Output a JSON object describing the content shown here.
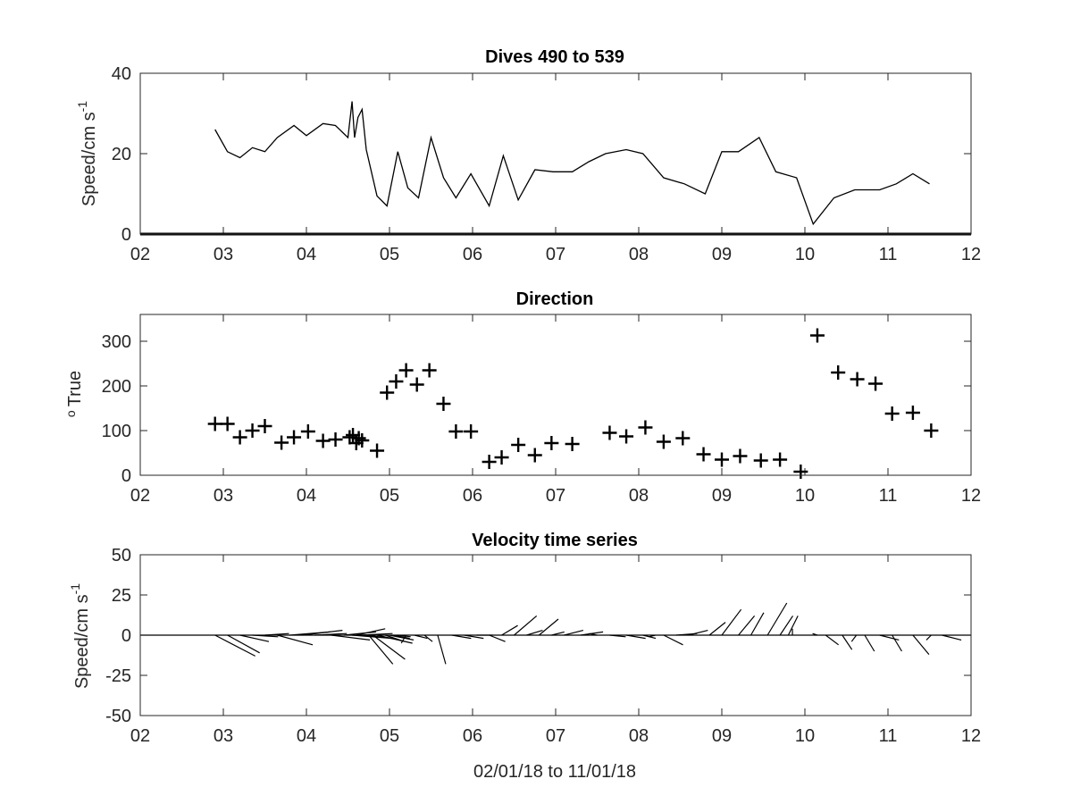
{
  "chart_data": [
    {
      "type": "line",
      "title": "Dives 490 to 539",
      "ylabel": "Speed/cm s",
      "ylabel_sup": "-1",
      "xlim": [
        2,
        12
      ],
      "ylim": [
        0,
        40
      ],
      "xtick_labels": [
        "02",
        "03",
        "04",
        "05",
        "06",
        "07",
        "08",
        "09",
        "10",
        "11",
        "12"
      ],
      "ytick_values": [
        0,
        20,
        40
      ],
      "ytick_labels": [
        "0",
        "20",
        "40"
      ],
      "series": [
        {
          "x": [
            2.9,
            3.05,
            3.2,
            3.35,
            3.5,
            3.65,
            3.85,
            4.0,
            4.2,
            4.35,
            4.5,
            4.55,
            4.58,
            4.62,
            4.67,
            4.72,
            4.85,
            4.97,
            5.1,
            5.22,
            5.35,
            5.5,
            5.65,
            5.8,
            5.98,
            6.2,
            6.37,
            6.55,
            6.75,
            6.97,
            7.2,
            7.4,
            7.6,
            7.85,
            8.05,
            8.3,
            8.55,
            8.8,
            9.0,
            9.2,
            9.45,
            9.65,
            9.9,
            10.1,
            10.35,
            10.6,
            10.8,
            10.9,
            11.1,
            11.3,
            11.5
          ],
          "y": [
            26,
            20.5,
            19,
            21.5,
            20.5,
            24,
            27,
            24.5,
            27.5,
            27,
            24,
            33,
            24,
            29,
            31,
            21,
            9.5,
            7,
            20.5,
            11.5,
            9,
            24,
            14,
            9,
            15,
            7,
            19.5,
            8.5,
            16,
            15.5,
            15.5,
            18,
            20,
            21,
            20,
            14,
            12.5,
            10,
            20.5,
            20.5,
            24,
            15.5,
            14,
            2.5,
            9,
            11,
            11,
            11,
            12.5,
            15,
            12.5
          ]
        }
      ]
    },
    {
      "type": "scatter",
      "title": "Direction",
      "ylabel": "True",
      "ylabel_sup": "o",
      "xlim": [
        2,
        12
      ],
      "ylim": [
        0,
        360
      ],
      "xtick_labels": [
        "02",
        "03",
        "04",
        "05",
        "06",
        "07",
        "08",
        "09",
        "10",
        "11",
        "12"
      ],
      "ytick_values": [
        0,
        100,
        200,
        300
      ],
      "ytick_labels": [
        "0",
        "100",
        "200",
        "300"
      ],
      "marker": "+",
      "series": [
        {
          "x": [
            2.9,
            3.05,
            3.2,
            3.35,
            3.5,
            3.7,
            3.85,
            4.02,
            4.2,
            4.35,
            4.52,
            4.56,
            4.6,
            4.63,
            4.67,
            4.85,
            4.97,
            5.08,
            5.2,
            5.33,
            5.48,
            5.65,
            5.8,
            5.98,
            6.2,
            6.35,
            6.55,
            6.75,
            6.95,
            7.2,
            7.65,
            7.85,
            8.08,
            8.3,
            8.53,
            8.78,
            9.0,
            9.22,
            9.47,
            9.7,
            9.95,
            10.15,
            10.4,
            10.63,
            10.85,
            11.05,
            11.3,
            11.52
          ],
          "y": [
            115,
            115,
            85,
            100,
            110,
            73,
            85,
            98,
            77,
            80,
            85,
            90,
            72,
            83,
            78,
            55,
            185,
            210,
            235,
            203,
            235,
            160,
            98,
            98,
            30,
            40,
            68,
            45,
            72,
            70,
            95,
            87,
            107,
            75,
            83,
            47,
            35,
            43,
            33,
            35,
            8,
            313,
            230,
            215,
            205,
            138,
            140,
            100
          ]
        }
      ]
    },
    {
      "type": "quiver",
      "title": "Velocity time series",
      "ylabel": "Speed/cm s",
      "ylabel_sup": "-1",
      "xlabel": "02/01/18 to 11/01/18",
      "xlim": [
        2,
        12
      ],
      "ylim": [
        -50,
        50
      ],
      "xtick_labels": [
        "02",
        "03",
        "04",
        "05",
        "06",
        "07",
        "08",
        "09",
        "10",
        "11",
        "12"
      ],
      "ytick_values": [
        -50,
        -25,
        0,
        25,
        50
      ],
      "ytick_labels": [
        "-50",
        "-25",
        "0",
        "25",
        "50"
      ],
      "vectors": [
        {
          "x": 2.9,
          "u": 25,
          "v": -13
        },
        {
          "x": 3.05,
          "u": 20,
          "v": -11
        },
        {
          "x": 3.2,
          "u": 18,
          "v": -4
        },
        {
          "x": 3.35,
          "u": 16,
          "v": -1
        },
        {
          "x": 3.5,
          "u": 15,
          "v": 1
        },
        {
          "x": 3.65,
          "u": 22,
          "v": -6
        },
        {
          "x": 3.8,
          "u": 25,
          "v": 2
        },
        {
          "x": 3.95,
          "u": 25,
          "v": 3
        },
        {
          "x": 4.1,
          "u": 20,
          "v": 1
        },
        {
          "x": 4.3,
          "u": 24,
          "v": -3
        },
        {
          "x": 4.45,
          "u": 20,
          "v": 2
        },
        {
          "x": 4.55,
          "u": 25,
          "v": -2
        },
        {
          "x": 4.6,
          "u": 18,
          "v": 4
        },
        {
          "x": 4.65,
          "u": 20,
          "v": 1
        },
        {
          "x": 4.7,
          "u": 18,
          "v": -2
        },
        {
          "x": 4.75,
          "u": 15,
          "v": -18
        },
        {
          "x": 4.8,
          "u": 20,
          "v": -15
        },
        {
          "x": 4.85,
          "u": 22,
          "v": -5
        },
        {
          "x": 4.95,
          "u": 12,
          "v": -4
        },
        {
          "x": 5.0,
          "u": 15,
          "v": -3
        },
        {
          "x": 5.05,
          "u": 10,
          "v": -2
        },
        {
          "x": 5.1,
          "u": 8,
          "v": -1
        },
        {
          "x": 5.2,
          "u": -3,
          "v": -5
        },
        {
          "x": 5.3,
          "u": 8,
          "v": -2
        },
        {
          "x": 5.42,
          "u": 5,
          "v": -4
        },
        {
          "x": 5.58,
          "u": 5,
          "v": -18
        },
        {
          "x": 5.75,
          "u": 12,
          "v": -2
        },
        {
          "x": 5.9,
          "u": 12,
          "v": -2
        },
        {
          "x": 6.05,
          "u": 10,
          "v": 0
        },
        {
          "x": 6.2,
          "u": 10,
          "v": -4
        },
        {
          "x": 6.35,
          "u": 10,
          "v": 6
        },
        {
          "x": 6.5,
          "u": 14,
          "v": 12
        },
        {
          "x": 6.65,
          "u": 10,
          "v": 3
        },
        {
          "x": 6.8,
          "u": 12,
          "v": 10
        },
        {
          "x": 6.95,
          "u": 8,
          "v": 2
        },
        {
          "x": 7.1,
          "u": 12,
          "v": 3
        },
        {
          "x": 7.3,
          "u": 14,
          "v": 2
        },
        {
          "x": 7.5,
          "u": -5,
          "v": 1
        },
        {
          "x": 7.65,
          "u": 10,
          "v": -1
        },
        {
          "x": 7.85,
          "u": 12,
          "v": -2
        },
        {
          "x": 8.05,
          "u": 8,
          "v": -2
        },
        {
          "x": 8.2,
          "u": -4,
          "v": -1
        },
        {
          "x": 8.3,
          "u": 12,
          "v": -6
        },
        {
          "x": 8.45,
          "u": 13,
          "v": 1
        },
        {
          "x": 8.6,
          "u": 12,
          "v": 3
        },
        {
          "x": 8.85,
          "u": 10,
          "v": 8
        },
        {
          "x": 9.0,
          "u": 12,
          "v": 16
        },
        {
          "x": 9.2,
          "u": 10,
          "v": 12
        },
        {
          "x": 9.35,
          "u": 8,
          "v": 14
        },
        {
          "x": 9.55,
          "u": 12,
          "v": 20
        },
        {
          "x": 9.7,
          "u": 8,
          "v": 12
        },
        {
          "x": 9.8,
          "u": 6,
          "v": 12
        },
        {
          "x": 9.85,
          "u": 0,
          "v": 4
        },
        {
          "x": 10.15,
          "u": -3,
          "v": 1
        },
        {
          "x": 10.25,
          "u": 8,
          "v": -6
        },
        {
          "x": 10.45,
          "u": 6,
          "v": -9
        },
        {
          "x": 10.62,
          "u": -3,
          "v": -4
        },
        {
          "x": 10.72,
          "u": 6,
          "v": -10
        },
        {
          "x": 10.9,
          "u": 12,
          "v": -3
        },
        {
          "x": 11.05,
          "u": 6,
          "v": -10
        },
        {
          "x": 11.3,
          "u": 10,
          "v": -12
        },
        {
          "x": 11.52,
          "u": -3,
          "v": -3
        },
        {
          "x": 11.65,
          "u": 12,
          "v": -3
        }
      ]
    }
  ]
}
